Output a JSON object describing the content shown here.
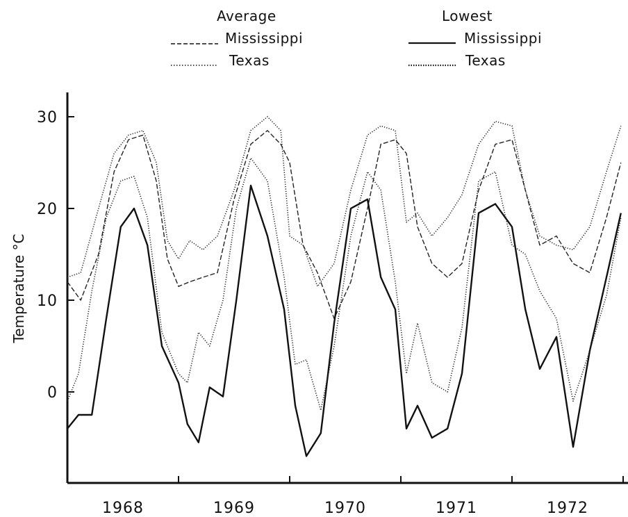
{
  "chart_data": {
    "type": "line",
    "ylabel": "Temperature °C",
    "ylim": [
      -10,
      32
    ],
    "yticks": [
      "0",
      "10",
      "20",
      "30"
    ],
    "xticks": [
      "1968",
      "1969",
      "1970",
      "1971",
      "1972"
    ],
    "grid": false,
    "legend": {
      "placement": "top",
      "groups": [
        {
          "title": "Average",
          "entries": [
            "Mississippi",
            "Texas"
          ]
        },
        {
          "title": "Lowest",
          "entries": [
            "Mississippi",
            "Texas"
          ]
        }
      ]
    },
    "series": [
      {
        "name": "Mississippi",
        "group": "Average",
        "style": "dashed",
        "x": [
          0.0,
          0.12,
          0.28,
          0.42,
          0.55,
          0.68,
          0.8,
          0.9,
          1.0,
          1.1,
          1.22,
          1.35,
          1.5,
          1.65,
          1.8,
          1.92,
          2.0,
          2.12,
          2.25,
          2.4,
          2.55,
          2.7,
          2.82,
          2.95,
          3.05,
          3.15,
          3.28,
          3.42,
          3.55,
          3.7,
          3.85,
          4.0,
          4.12,
          4.25,
          4.4,
          4.55,
          4.7,
          4.85,
          4.98
        ],
        "y": [
          12,
          10,
          15,
          24,
          27.5,
          28,
          23,
          14.5,
          11.5,
          12,
          12.5,
          13,
          21,
          27,
          28.5,
          27,
          25,
          16,
          13,
          8,
          12,
          20,
          27,
          27.5,
          26,
          18,
          14,
          12.5,
          14,
          22,
          27,
          27.5,
          22,
          16,
          17,
          14,
          13,
          19,
          25
        ]
      },
      {
        "name": "Texas",
        "group": "Average",
        "style": "dotted",
        "x": [
          0.0,
          0.12,
          0.28,
          0.42,
          0.55,
          0.68,
          0.8,
          0.9,
          1.0,
          1.1,
          1.22,
          1.35,
          1.5,
          1.65,
          1.8,
          1.92,
          2.0,
          2.12,
          2.25,
          2.4,
          2.55,
          2.7,
          2.82,
          2.95,
          3.05,
          3.15,
          3.28,
          3.42,
          3.55,
          3.7,
          3.85,
          4.0,
          4.12,
          4.25,
          4.4,
          4.55,
          4.7,
          4.85,
          4.98
        ],
        "y": [
          12.5,
          13,
          20,
          26,
          28,
          28.5,
          25,
          16.5,
          14.5,
          16.5,
          15.5,
          17,
          22,
          28.5,
          30,
          28.5,
          17,
          16,
          11.5,
          14,
          22,
          28,
          29,
          28.5,
          18.5,
          19.5,
          17,
          19,
          21.5,
          27,
          29.5,
          29,
          22,
          17,
          16,
          15.5,
          18,
          24,
          29
        ]
      },
      {
        "name": "Mississippi",
        "group": "Lowest",
        "style": "solid",
        "x": [
          0.0,
          0.1,
          0.22,
          0.35,
          0.48,
          0.6,
          0.72,
          0.85,
          1.0,
          1.08,
          1.18,
          1.28,
          1.4,
          1.52,
          1.65,
          1.8,
          1.95,
          2.05,
          2.15,
          2.28,
          2.4,
          2.55,
          2.7,
          2.82,
          2.95,
          3.05,
          3.15,
          3.28,
          3.42,
          3.55,
          3.7,
          3.85,
          4.0,
          4.12,
          4.25,
          4.4,
          4.55,
          4.7,
          4.85,
          4.98
        ],
        "y": [
          -4,
          -2.5,
          -2.5,
          8,
          18,
          20,
          16,
          5,
          1,
          -3.5,
          -5.5,
          0.5,
          -0.5,
          10,
          22.5,
          17,
          9,
          -1.5,
          -7,
          -4.5,
          7.5,
          20,
          21,
          12.5,
          9,
          -4,
          -1.5,
          -5,
          -4,
          2,
          19.5,
          20.5,
          18,
          9,
          2.5,
          6,
          -6,
          4.5,
          12.5,
          19.5
        ]
      },
      {
        "name": "Texas",
        "group": "Lowest",
        "style": "dotted",
        "x": [
          0.0,
          0.1,
          0.22,
          0.35,
          0.48,
          0.6,
          0.72,
          0.85,
          1.0,
          1.08,
          1.18,
          1.28,
          1.4,
          1.52,
          1.65,
          1.8,
          1.95,
          2.05,
          2.15,
          2.28,
          2.4,
          2.55,
          2.7,
          2.82,
          2.95,
          3.05,
          3.15,
          3.28,
          3.42,
          3.55,
          3.7,
          3.85,
          4.0,
          4.12,
          4.25,
          4.4,
          4.55,
          4.7,
          4.85,
          4.98
        ],
        "y": [
          -1,
          2,
          11,
          19,
          23,
          23.5,
          19,
          6.5,
          2,
          1,
          6.5,
          5,
          10,
          20,
          25.5,
          23,
          12.5,
          3,
          3.5,
          -2,
          5,
          17,
          24,
          22,
          12,
          2,
          7.5,
          1,
          0,
          7,
          23,
          24,
          16,
          15,
          11,
          8,
          -1,
          4.5,
          10.5,
          19
        ]
      }
    ]
  }
}
